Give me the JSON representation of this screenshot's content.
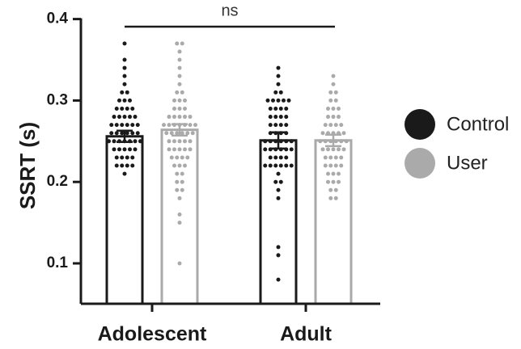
{
  "chart_data": {
    "type": "bar",
    "ylabel": "SSRT (s)",
    "xlabel": "",
    "ylim": [
      0.06,
      0.4
    ],
    "yticks": [
      0.1,
      0.2,
      0.3,
      0.4
    ],
    "ytick_labels": [
      "0.1",
      "0.2",
      "0.3",
      "0.4"
    ],
    "categories": [
      "Adolescent",
      "Adult"
    ],
    "legend_position": "right",
    "grid": false,
    "series": [
      {
        "name": "Control",
        "color": "#1a1a1a",
        "values": [
          0.256,
          0.251
        ],
        "errors": [
          0.007,
          0.01
        ],
        "points": [
          [
            0.37,
            0.35,
            0.34,
            0.33,
            0.32,
            0.31,
            0.31,
            0.3,
            0.3,
            0.3,
            0.29,
            0.29,
            0.29,
            0.29,
            0.28,
            0.28,
            0.28,
            0.28,
            0.28,
            0.27,
            0.27,
            0.27,
            0.27,
            0.27,
            0.27,
            0.26,
            0.26,
            0.26,
            0.26,
            0.26,
            0.26,
            0.25,
            0.25,
            0.25,
            0.25,
            0.25,
            0.25,
            0.25,
            0.24,
            0.24,
            0.24,
            0.24,
            0.24,
            0.23,
            0.23,
            0.23,
            0.23,
            0.22,
            0.22,
            0.22,
            0.22,
            0.21
          ],
          [
            0.34,
            0.33,
            0.32,
            0.31,
            0.31,
            0.3,
            0.3,
            0.3,
            0.3,
            0.3,
            0.29,
            0.29,
            0.29,
            0.29,
            0.28,
            0.28,
            0.28,
            0.28,
            0.27,
            0.27,
            0.27,
            0.27,
            0.26,
            0.26,
            0.26,
            0.26,
            0.25,
            0.25,
            0.25,
            0.25,
            0.25,
            0.25,
            0.24,
            0.24,
            0.24,
            0.24,
            0.24,
            0.24,
            0.23,
            0.23,
            0.23,
            0.23,
            0.22,
            0.22,
            0.22,
            0.22,
            0.22,
            0.22,
            0.21,
            0.2,
            0.2,
            0.19,
            0.18,
            0.12,
            0.11,
            0.08
          ]
        ]
      },
      {
        "name": "User",
        "color": "#aaaaaa",
        "values": [
          0.264,
          0.251
        ],
        "errors": [
          0.007,
          0.007
        ],
        "points": [
          [
            0.37,
            0.37,
            0.36,
            0.35,
            0.34,
            0.33,
            0.32,
            0.31,
            0.31,
            0.3,
            0.3,
            0.3,
            0.29,
            0.29,
            0.29,
            0.28,
            0.28,
            0.28,
            0.28,
            0.28,
            0.27,
            0.27,
            0.27,
            0.27,
            0.27,
            0.27,
            0.27,
            0.26,
            0.26,
            0.26,
            0.26,
            0.26,
            0.26,
            0.25,
            0.25,
            0.25,
            0.25,
            0.25,
            0.24,
            0.24,
            0.24,
            0.24,
            0.24,
            0.23,
            0.23,
            0.23,
            0.23,
            0.22,
            0.22,
            0.22,
            0.21,
            0.21,
            0.2,
            0.2,
            0.19,
            0.19,
            0.18,
            0.16,
            0.15,
            0.1
          ],
          [
            0.33,
            0.32,
            0.31,
            0.31,
            0.3,
            0.3,
            0.29,
            0.29,
            0.29,
            0.28,
            0.28,
            0.28,
            0.27,
            0.27,
            0.27,
            0.27,
            0.26,
            0.26,
            0.26,
            0.26,
            0.26,
            0.25,
            0.25,
            0.25,
            0.25,
            0.25,
            0.25,
            0.24,
            0.24,
            0.24,
            0.24,
            0.24,
            0.23,
            0.23,
            0.23,
            0.23,
            0.22,
            0.22,
            0.22,
            0.22,
            0.21,
            0.21,
            0.21,
            0.2,
            0.2,
            0.2,
            0.19,
            0.19,
            0.18,
            0.18
          ]
        ]
      }
    ],
    "annotations": [
      {
        "text": "ns",
        "between": [
          "Adolescent",
          "Adult"
        ]
      }
    ]
  }
}
